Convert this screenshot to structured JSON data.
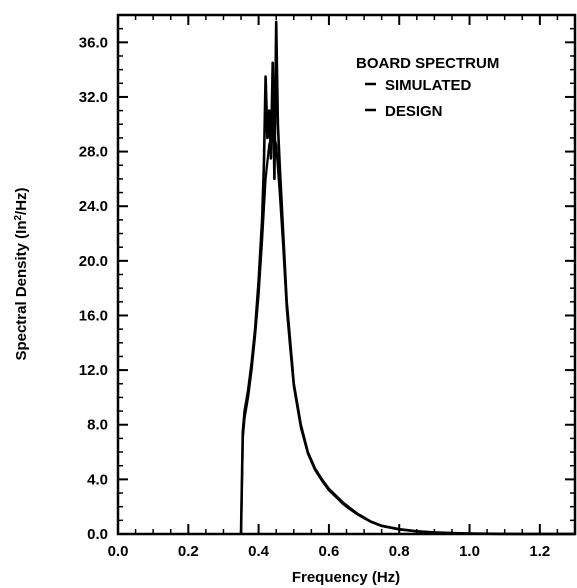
{
  "chart_data": {
    "type": "line",
    "xlabel": "Frequency (Hz)",
    "ylabel_main": "Spectral Density (In",
    "ylabel_sup": "2",
    "ylabel_tail": "/Hz)",
    "xlim": [
      0.0,
      1.3
    ],
    "ylim": [
      0.0,
      38.0
    ],
    "x_ticks": [
      0.0,
      0.2,
      0.4,
      0.6,
      0.8,
      1.0,
      1.2
    ],
    "x_tick_labels": [
      "0.0",
      "0.2",
      "0.4",
      "0.6",
      "0.8",
      "1.0",
      "1.2"
    ],
    "y_ticks": [
      0,
      4,
      8,
      12,
      16,
      20,
      24,
      28,
      32,
      36
    ],
    "y_tick_labels": [
      "0.0",
      "4.0",
      "8.0",
      "12.0",
      "16.0",
      "20.0",
      "24.0",
      "28.0",
      "32.0",
      "36.0"
    ],
    "legend": {
      "title": "BOARD SPECTRUM",
      "entries": [
        "SIMULATED",
        "DESIGN"
      ],
      "placement": "top-right"
    },
    "grid": false,
    "series": [
      {
        "name": "SIMULATED",
        "x": [
          0.35,
          0.355,
          0.36,
          0.37,
          0.38,
          0.39,
          0.4,
          0.41,
          0.415,
          0.42,
          0.425,
          0.43,
          0.435,
          0.44,
          0.445,
          0.45,
          0.455,
          0.46,
          0.47,
          0.48,
          0.49,
          0.5,
          0.52,
          0.54,
          0.56,
          0.58,
          0.6,
          0.62,
          0.64,
          0.66,
          0.68,
          0.7,
          0.72,
          0.75,
          0.8,
          0.85,
          0.9,
          0.95,
          1.0,
          1.05,
          1.1,
          1.15,
          1.2,
          1.25,
          1.3
        ],
        "y": [
          0.0,
          7.5,
          9.0,
          10.5,
          12.5,
          15.0,
          18.5,
          23.0,
          27.0,
          33.5,
          29.0,
          31.0,
          27.5,
          34.5,
          26.0,
          37.5,
          30.0,
          27.0,
          22.0,
          17.0,
          14.0,
          11.0,
          8.0,
          6.0,
          4.8,
          4.0,
          3.3,
          2.8,
          2.3,
          1.9,
          1.5,
          1.2,
          0.9,
          0.6,
          0.35,
          0.2,
          0.12,
          0.07,
          0.04,
          0.02,
          0.01,
          0.0,
          0.0,
          0.0,
          0.0
        ]
      },
      {
        "name": "DESIGN",
        "x": [
          0.35,
          0.355,
          0.36,
          0.37,
          0.38,
          0.39,
          0.4,
          0.41,
          0.42,
          0.43,
          0.44,
          0.45,
          0.46,
          0.47,
          0.48,
          0.49,
          0.5,
          0.52,
          0.54,
          0.56,
          0.58,
          0.6,
          0.62,
          0.64,
          0.66,
          0.68,
          0.7,
          0.72,
          0.75,
          0.8,
          0.85,
          0.9,
          0.95,
          1.0,
          1.05,
          1.1,
          1.15,
          1.2,
          1.25,
          1.3
        ],
        "y": [
          0.0,
          7.0,
          8.5,
          10.0,
          12.0,
          14.5,
          17.5,
          21.5,
          26.0,
          28.5,
          29.5,
          28.5,
          25.0,
          21.0,
          16.5,
          13.5,
          10.8,
          7.8,
          5.9,
          4.7,
          3.9,
          3.2,
          2.7,
          2.2,
          1.8,
          1.45,
          1.15,
          0.88,
          0.58,
          0.33,
          0.19,
          0.11,
          0.06,
          0.035,
          0.018,
          0.008,
          0.0,
          0.0,
          0.0,
          0.0
        ]
      }
    ]
  }
}
